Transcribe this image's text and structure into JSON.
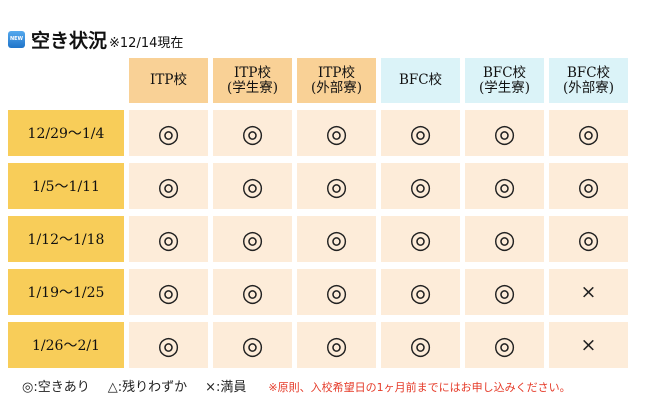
{
  "header": {
    "badge": "NEW",
    "title": "空き状況",
    "as_of": "※12/14現在"
  },
  "table": {
    "columns": [
      {
        "line1": "ITP校",
        "line2": "",
        "group": "itp"
      },
      {
        "line1": "ITP校",
        "line2": "(学生寮)",
        "group": "itp"
      },
      {
        "line1": "ITP校",
        "line2": "(外部寮)",
        "group": "itp"
      },
      {
        "line1": "BFC校",
        "line2": "",
        "group": "bfc"
      },
      {
        "line1": "BFC校",
        "line2": "(学生寮)",
        "group": "bfc"
      },
      {
        "line1": "BFC校",
        "line2": "(外部寮)",
        "group": "bfc"
      }
    ],
    "rows": [
      {
        "period": "12/29～1/4",
        "cells": [
          "◎",
          "◎",
          "◎",
          "◎",
          "◎",
          "◎"
        ]
      },
      {
        "period": "1/5～1/11",
        "cells": [
          "◎",
          "◎",
          "◎",
          "◎",
          "◎",
          "◎"
        ]
      },
      {
        "period": "1/12～1/18",
        "cells": [
          "◎",
          "◎",
          "◎",
          "◎",
          "◎",
          "◎"
        ]
      },
      {
        "period": "1/19～1/25",
        "cells": [
          "◎",
          "◎",
          "◎",
          "◎",
          "◎",
          "×"
        ]
      },
      {
        "period": "1/26～2/1",
        "cells": [
          "◎",
          "◎",
          "◎",
          "◎",
          "◎",
          "×"
        ]
      }
    ]
  },
  "legend": {
    "available": "◎:空きあり",
    "few_left": "△:残りわずか",
    "full": "×:満員",
    "note": "※原則、入校希望日の1ヶ月前までにはお申し込みください。"
  },
  "colors": {
    "itp_header": "#f9d196",
    "bfc_header": "#dbf3f8",
    "period_cell": "#f8cd59",
    "status_cell": "#fdecd9",
    "note_text": "#e53a28"
  }
}
